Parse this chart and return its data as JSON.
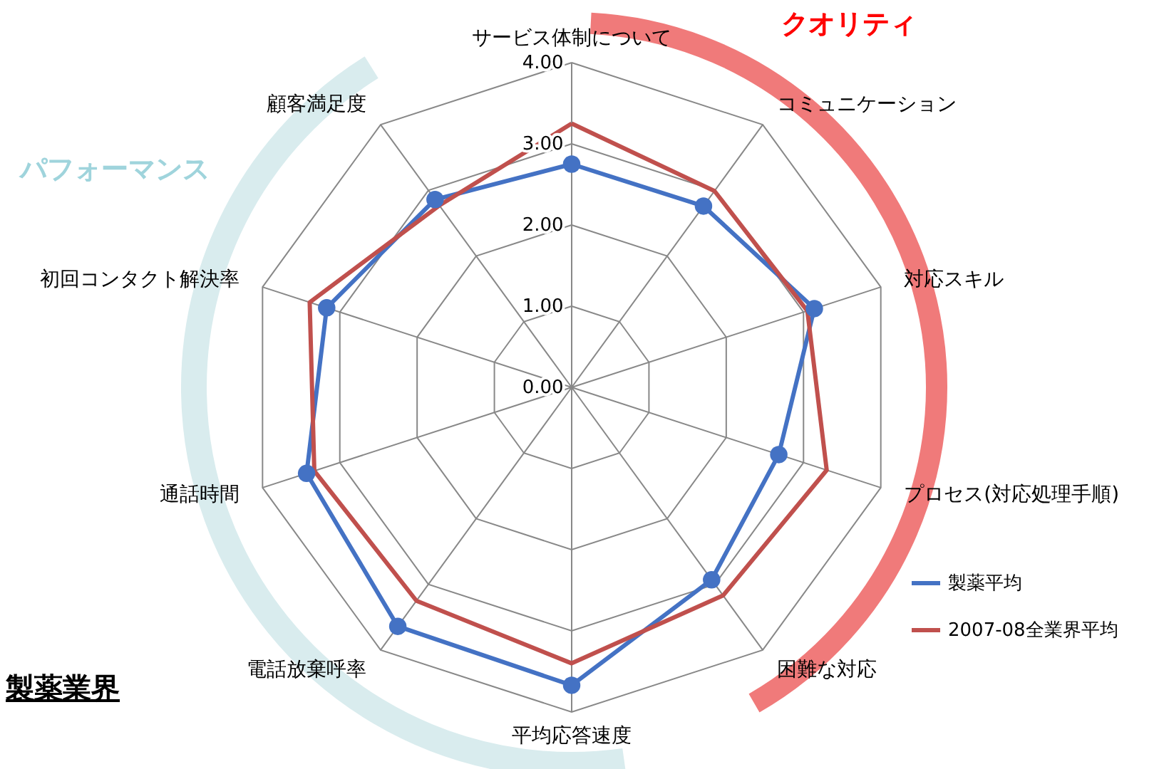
{
  "chart_data": {
    "type": "radar",
    "categories": [
      "サービス体制について",
      "コミュニケーション",
      "対応スキル",
      "プロセス(対応処理手順)",
      "困難な対応",
      "平均応答速度",
      "電話放棄呼率",
      "通話時間",
      "初回コンタクト解決率",
      "顧客満足度"
    ],
    "series": [
      {
        "name": "製薬平均",
        "color": "#4472c4",
        "marker": "circle",
        "values": [
          2.75,
          2.76,
          3.14,
          2.68,
          2.93,
          3.67,
          3.64,
          3.43,
          3.17,
          2.86
        ]
      },
      {
        "name": "2007-08全業界平均",
        "color": "#c0504d",
        "marker": "none",
        "values": [
          3.25,
          2.99,
          3.05,
          3.3,
          3.17,
          3.4,
          3.25,
          3.33,
          3.39,
          2.77
        ]
      }
    ],
    "ylim": [
      0,
      4
    ],
    "yticks": [
      {
        "value": 0,
        "label": "0.00"
      },
      {
        "value": 1,
        "label": "1.00"
      },
      {
        "value": 2,
        "label": "2.00"
      },
      {
        "value": 3,
        "label": "3.00"
      },
      {
        "value": 4,
        "label": "4.00"
      }
    ],
    "grid": true,
    "legend": "bottom right",
    "annotations": [
      "クオリティ",
      "パフォーマンス",
      "製薬業界"
    ]
  }
}
